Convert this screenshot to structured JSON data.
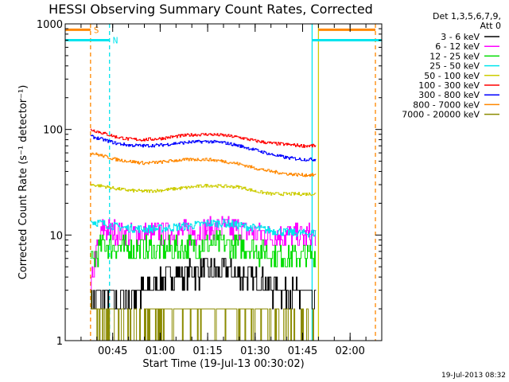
{
  "title": "HESSI Observing Summary Count Rates, Corrected",
  "footer_timestamp": "19-Jul-2013 08:32",
  "flag_labels": {
    "s": "S",
    "n": "N"
  },
  "chart_data": {
    "type": "line",
    "title": "HESSI Observing Summary Count Rates, Corrected",
    "xlabel": "Start Time (19-Jul-13 00:30:02)",
    "ylabel": "Corrected Count Rate (s⁻¹ detector⁻¹)",
    "y_scale": "log",
    "ylim": [
      1,
      1000
    ],
    "xlim": [
      "00:30",
      "02:10"
    ],
    "x_ticks": [
      "00:45",
      "01:00",
      "01:15",
      "01:30",
      "01:45",
      "02:00"
    ],
    "y_ticks": [
      "1",
      "10",
      "100",
      "1000"
    ],
    "legend_header": [
      "Det 1,3,5,6,7,9,",
      "Att 0"
    ],
    "legend_position": "right",
    "data_start": "00:38",
    "data_end": "01:49",
    "x": [
      "00:38",
      "00:42",
      "00:46",
      "00:50",
      "00:55",
      "01:00",
      "01:05",
      "01:10",
      "01:15",
      "01:20",
      "01:25",
      "01:30",
      "01:35",
      "01:40",
      "01:45",
      "01:49"
    ],
    "series": [
      {
        "name": "3 - 6 keV",
        "color": "#000000",
        "values": [
          2.3,
          2.6,
          2.4,
          2.6,
          3.0,
          3.6,
          4.2,
          4.4,
          4.6,
          4.7,
          4.2,
          3.8,
          3.2,
          3.0,
          2.6,
          2.6
        ]
      },
      {
        "name": "6 - 12 keV",
        "color": "#ff00ff",
        "values": [
          2.9,
          11.5,
          10.6,
          10.3,
          10.2,
          10.4,
          10.5,
          10.6,
          11.3,
          11.8,
          11.2,
          10.6,
          10.0,
          10.0,
          9.8,
          9.8
        ]
      },
      {
        "name": "12 - 25 keV",
        "color": "#00dd00",
        "values": [
          5.2,
          8.2,
          7.8,
          7.4,
          7.3,
          7.3,
          7.4,
          7.7,
          8.1,
          8.2,
          7.9,
          7.2,
          6.6,
          6.4,
          6.3,
          6.3
        ]
      },
      {
        "name": "25 - 50 keV",
        "color": "#00e5ee",
        "values": [
          13.5,
          12.8,
          12.0,
          11.6,
          11.4,
          11.5,
          11.9,
          12.3,
          12.9,
          13.0,
          12.3,
          11.6,
          11.0,
          10.6,
          10.4,
          10.4
        ]
      },
      {
        "name": "50 - 100 keV",
        "color": "#cccc00",
        "values": [
          30,
          29,
          27.5,
          26.5,
          26,
          26.5,
          27.5,
          28.5,
          29.5,
          29,
          28.5,
          26,
          24.5,
          24.5,
          24.5,
          24.5
        ]
      },
      {
        "name": "100 - 300 keV",
        "color": "#ff0000",
        "values": [
          100,
          92,
          85,
          81,
          80,
          82,
          86,
          89,
          90,
          88,
          84,
          78,
          74,
          72,
          70,
          70
        ]
      },
      {
        "name": "300 - 800 keV",
        "color": "#0000ff",
        "values": [
          86,
          80,
          74,
          71,
          70,
          71,
          74,
          76,
          77,
          75,
          70,
          64,
          58,
          54,
          52,
          52
        ]
      },
      {
        "name": "800 - 7000 keV",
        "color": "#ff8800",
        "values": [
          60,
          56,
          52,
          50,
          48,
          49,
          51,
          52,
          52,
          50,
          47,
          43,
          40,
          38,
          37,
          37
        ]
      },
      {
        "name": "7000 - 20000 keV",
        "color": "#8b8b00",
        "values": [
          2,
          1.6,
          1.3,
          1.2,
          1.4,
          1.6,
          1.8,
          1.8,
          1.9,
          1.9,
          1.8,
          1.7,
          1.6,
          1.5,
          1.4,
          1.4
        ]
      }
    ],
    "attenuator_flags": {
      "label": "S",
      "color": "#ff8800",
      "value": 880,
      "intervals": [
        [
          "00:30",
          "00:38"
        ],
        [
          "01:50",
          "02:08"
        ]
      ]
    },
    "night_flags": {
      "label": "N",
      "color": "#00e5ee",
      "value": 700,
      "intervals": [
        [
          "00:30",
          "00:44"
        ],
        [
          "01:48",
          "02:10"
        ]
      ]
    },
    "vertical_markers": [
      {
        "time": "00:38",
        "color": "#ff8800",
        "style": "dashed"
      },
      {
        "time": "00:44",
        "color": "#00e5ee",
        "style": "dashed"
      },
      {
        "time": "01:48",
        "color": "#00e5ee",
        "style": "solid"
      },
      {
        "time": "01:50",
        "color": "#cccc00",
        "style": "solid"
      },
      {
        "time": "02:08",
        "color": "#ff8800",
        "style": "dashed"
      }
    ]
  }
}
